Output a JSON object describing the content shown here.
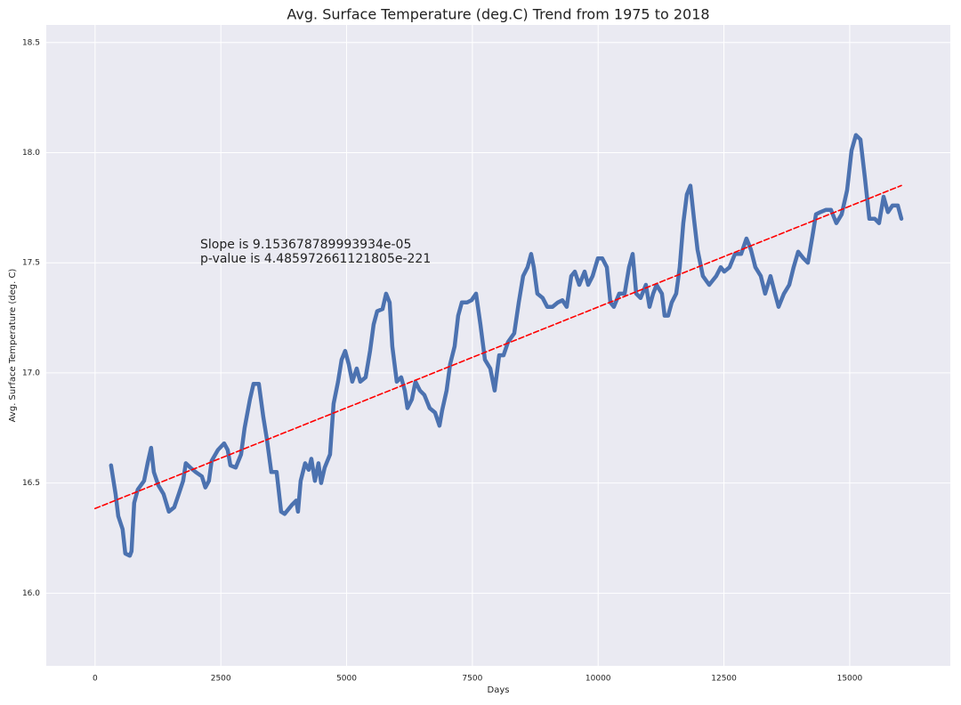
{
  "chart_data": {
    "type": "line",
    "title": "Avg. Surface Temperature (deg.C) Trend from 1975 to 2018",
    "x_label": "Days",
    "y_label": "Avg. Surface Temperature (deg. C)",
    "annotations": [
      "Slope is 9.153678789993934e-05",
      "p-value is 4.485972661121805e-221"
    ],
    "xlim": [
      -970,
      17000
    ],
    "ylim": [
      15.67,
      18.58
    ],
    "xticks": [
      0,
      2500,
      5000,
      7500,
      10000,
      12500,
      15000
    ],
    "yticks": [
      {
        "value": 16,
        "label": "16.0"
      },
      16.5,
      {
        "value": 17,
        "label": "17.0"
      },
      17.5,
      {
        "value": 18,
        "label": "18.0"
      },
      18.5
    ],
    "grid": true,
    "series": [
      {
        "color": "#4c72b0",
        "dash": false,
        "x": [
          318,
          407,
          460,
          548,
          601,
          690,
          725,
          778,
          849,
          973,
          1044,
          1114,
          1168,
          1256,
          1362,
          1468,
          1574,
          1663,
          1751,
          1804,
          1893,
          1999,
          2123,
          2193,
          2264,
          2317,
          2441,
          2565,
          2636,
          2689,
          2795,
          2901,
          2972,
          3078,
          3149,
          3255,
          3343,
          3414,
          3503,
          3609,
          3697,
          3768,
          3909,
          3998,
          4033,
          4086,
          4175,
          4246,
          4299,
          4369,
          4440,
          4493,
          4564,
          4670,
          4741,
          4829,
          4900,
          4971,
          5041,
          5112,
          5201,
          5272,
          5378,
          5466,
          5537,
          5607,
          5714,
          5784,
          5855,
          5908,
          5997,
          6085,
          6156,
          6209,
          6298,
          6369,
          6457,
          6546,
          6652,
          6758,
          6846,
          6899,
          6988,
          7058,
          7147,
          7218,
          7289,
          7395,
          7483,
          7572,
          7660,
          7749,
          7855,
          7943,
          8032,
          8120,
          8208,
          8332,
          8421,
          8509,
          8597,
          8668,
          8721,
          8792,
          8898,
          8987,
          9093,
          9199,
          9288,
          9376,
          9465,
          9536,
          9624,
          9730,
          9801,
          9889,
          9995,
          10083,
          10172,
          10243,
          10313,
          10419,
          10526,
          10614,
          10685,
          10756,
          10844,
          10950,
          11021,
          11092,
          11162,
          11268,
          11321,
          11392,
          11463,
          11551,
          11622,
          11693,
          11763,
          11834,
          11905,
          11975,
          12082,
          12206,
          12347,
          12436,
          12506,
          12612,
          12719,
          12842,
          12948,
          13037,
          13125,
          13232,
          13320,
          13426,
          13515,
          13586,
          13692,
          13798,
          13886,
          13975,
          14081,
          14169,
          14258,
          14329,
          14417,
          14523,
          14629,
          14735,
          14841,
          14948,
          15036,
          15124,
          15213,
          15301,
          15390,
          15496,
          15584,
          15673,
          15761,
          15850,
          15956,
          16027
        ],
        "values": [
          16.58,
          16.45,
          16.35,
          16.29,
          16.18,
          16.17,
          16.19,
          16.41,
          16.47,
          16.51,
          16.59,
          16.66,
          16.55,
          16.49,
          16.45,
          16.37,
          16.39,
          16.45,
          16.51,
          16.59,
          16.57,
          16.55,
          16.53,
          16.48,
          16.51,
          16.6,
          16.65,
          16.68,
          16.65,
          16.58,
          16.57,
          16.63,
          16.75,
          16.88,
          16.95,
          16.95,
          16.8,
          16.7,
          16.55,
          16.55,
          16.37,
          16.36,
          16.4,
          16.42,
          16.37,
          16.51,
          16.59,
          16.56,
          16.61,
          16.51,
          16.59,
          16.5,
          16.57,
          16.63,
          16.86,
          16.96,
          17.06,
          17.1,
          17.04,
          16.96,
          17.02,
          16.96,
          16.98,
          17.1,
          17.22,
          17.28,
          17.29,
          17.36,
          17.32,
          17.12,
          16.96,
          16.98,
          16.92,
          16.84,
          16.88,
          16.96,
          16.92,
          16.9,
          16.84,
          16.82,
          16.76,
          16.83,
          16.92,
          17.04,
          17.12,
          17.26,
          17.32,
          17.32,
          17.33,
          17.36,
          17.22,
          17.06,
          17.02,
          16.92,
          17.08,
          17.08,
          17.14,
          17.18,
          17.32,
          17.44,
          17.48,
          17.54,
          17.48,
          17.36,
          17.34,
          17.3,
          17.3,
          17.32,
          17.33,
          17.3,
          17.44,
          17.46,
          17.4,
          17.46,
          17.4,
          17.44,
          17.52,
          17.52,
          17.48,
          17.32,
          17.3,
          17.36,
          17.36,
          17.48,
          17.54,
          17.36,
          17.34,
          17.4,
          17.3,
          17.36,
          17.4,
          17.36,
          17.26,
          17.26,
          17.32,
          17.36,
          17.48,
          17.68,
          17.81,
          17.85,
          17.7,
          17.56,
          17.44,
          17.4,
          17.44,
          17.48,
          17.46,
          17.48,
          17.54,
          17.54,
          17.61,
          17.56,
          17.48,
          17.44,
          17.36,
          17.44,
          17.36,
          17.3,
          17.36,
          17.4,
          17.48,
          17.55,
          17.52,
          17.5,
          17.62,
          17.72,
          17.73,
          17.74,
          17.74,
          17.68,
          17.72,
          17.83,
          18.01,
          18.08,
          18.06,
          17.89,
          17.7,
          17.7,
          17.68,
          17.8,
          17.73,
          17.76,
          17.76,
          17.7
        ]
      },
      {
        "color": "#ff0000",
        "dash": true,
        "x": [
          0,
          16027
        ],
        "values": [
          16.384,
          17.851
        ]
      }
    ]
  }
}
